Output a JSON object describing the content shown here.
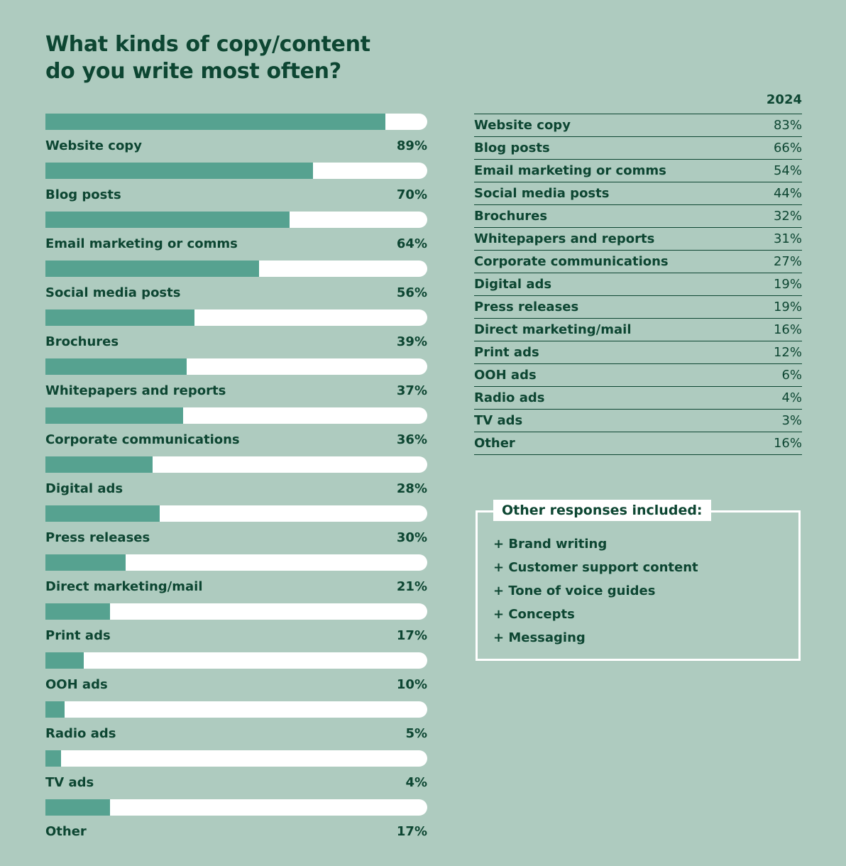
{
  "title_lines": [
    "What kinds of copy/content",
    "do you write most often?"
  ],
  "colors": {
    "background": "#aecbbf",
    "bar": "#56a290",
    "track": "#ffffff",
    "text": "#0d4632"
  },
  "chart_data": {
    "type": "bar",
    "orientation": "horizontal",
    "title": "What kinds of copy/content do you write most often?",
    "categories": [
      "Website copy",
      "Blog posts",
      "Email marketing or comms",
      "Social media posts",
      "Brochures",
      "Whitepapers and reports",
      "Corporate communications",
      "Digital ads",
      "Press releases",
      "Direct marketing/mail",
      "Print ads",
      "OOH ads",
      "Radio ads",
      "TV ads",
      "Other"
    ],
    "values": [
      89,
      70,
      64,
      56,
      39,
      37,
      36,
      28,
      30,
      21,
      17,
      10,
      5,
      4,
      17
    ],
    "value_labels": [
      "89%",
      "70%",
      "64%",
      "56%",
      "39%",
      "37%",
      "36%",
      "28%",
      "30%",
      "21%",
      "17%",
      "10%",
      "5%",
      "4%",
      "17%"
    ],
    "xlim": [
      0,
      100
    ]
  },
  "comparison_table": {
    "year": "2024",
    "rows": [
      {
        "label": "Website copy",
        "value": "83%"
      },
      {
        "label": "Blog posts",
        "value": "66%"
      },
      {
        "label": "Email marketing or comms",
        "value": "54%"
      },
      {
        "label": "Social media posts",
        "value": "44%"
      },
      {
        "label": "Brochures",
        "value": "32%"
      },
      {
        "label": "Whitepapers and reports",
        "value": "31%"
      },
      {
        "label": "Corporate communications",
        "value": "27%"
      },
      {
        "label": "Digital ads",
        "value": "19%"
      },
      {
        "label": "Press releases",
        "value": "19%"
      },
      {
        "label": "Direct marketing/mail",
        "value": "16%"
      },
      {
        "label": "Print ads",
        "value": "12%"
      },
      {
        "label": "OOH ads",
        "value": "6%"
      },
      {
        "label": "Radio ads",
        "value": "4%"
      },
      {
        "label": "TV ads",
        "value": "3%"
      },
      {
        "label": "Other",
        "value": "16%"
      }
    ]
  },
  "other_responses": {
    "title": "Other responses included:",
    "items": [
      "+ Brand writing",
      "+ Customer support content",
      "+ Tone of voice guides",
      "+ Concepts",
      "+ Messaging"
    ]
  }
}
